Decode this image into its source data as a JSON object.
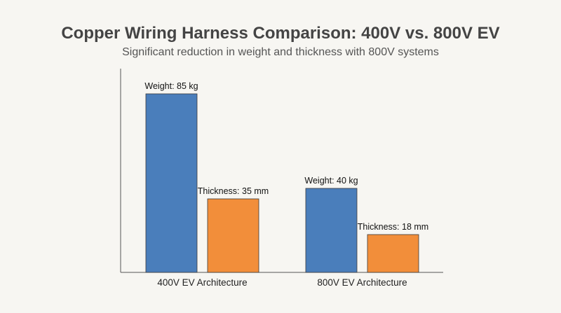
{
  "chart_data": {
    "type": "bar",
    "title": "Copper Wiring Harness Comparison: 400V vs. 800V EV",
    "subtitle": "Significant reduction in weight and thickness with 800V systems",
    "categories": [
      "400V EV Architecture",
      "800V EV Architecture"
    ],
    "series": [
      {
        "values": [
          85,
          40
        ],
        "labels": [
          "Weight: 85 kg",
          "Weight: 40 kg"
        ],
        "color": "#4a7ebb"
      },
      {
        "values": [
          35,
          18
        ],
        "labels": [
          "Thickness: 35 mm",
          "Thickness: 18 mm"
        ],
        "color": "#f28e3a"
      }
    ],
    "ylim": [
      0,
      100
    ],
    "xlabel": "",
    "ylabel": "",
    "grid": false,
    "legend": "none"
  }
}
